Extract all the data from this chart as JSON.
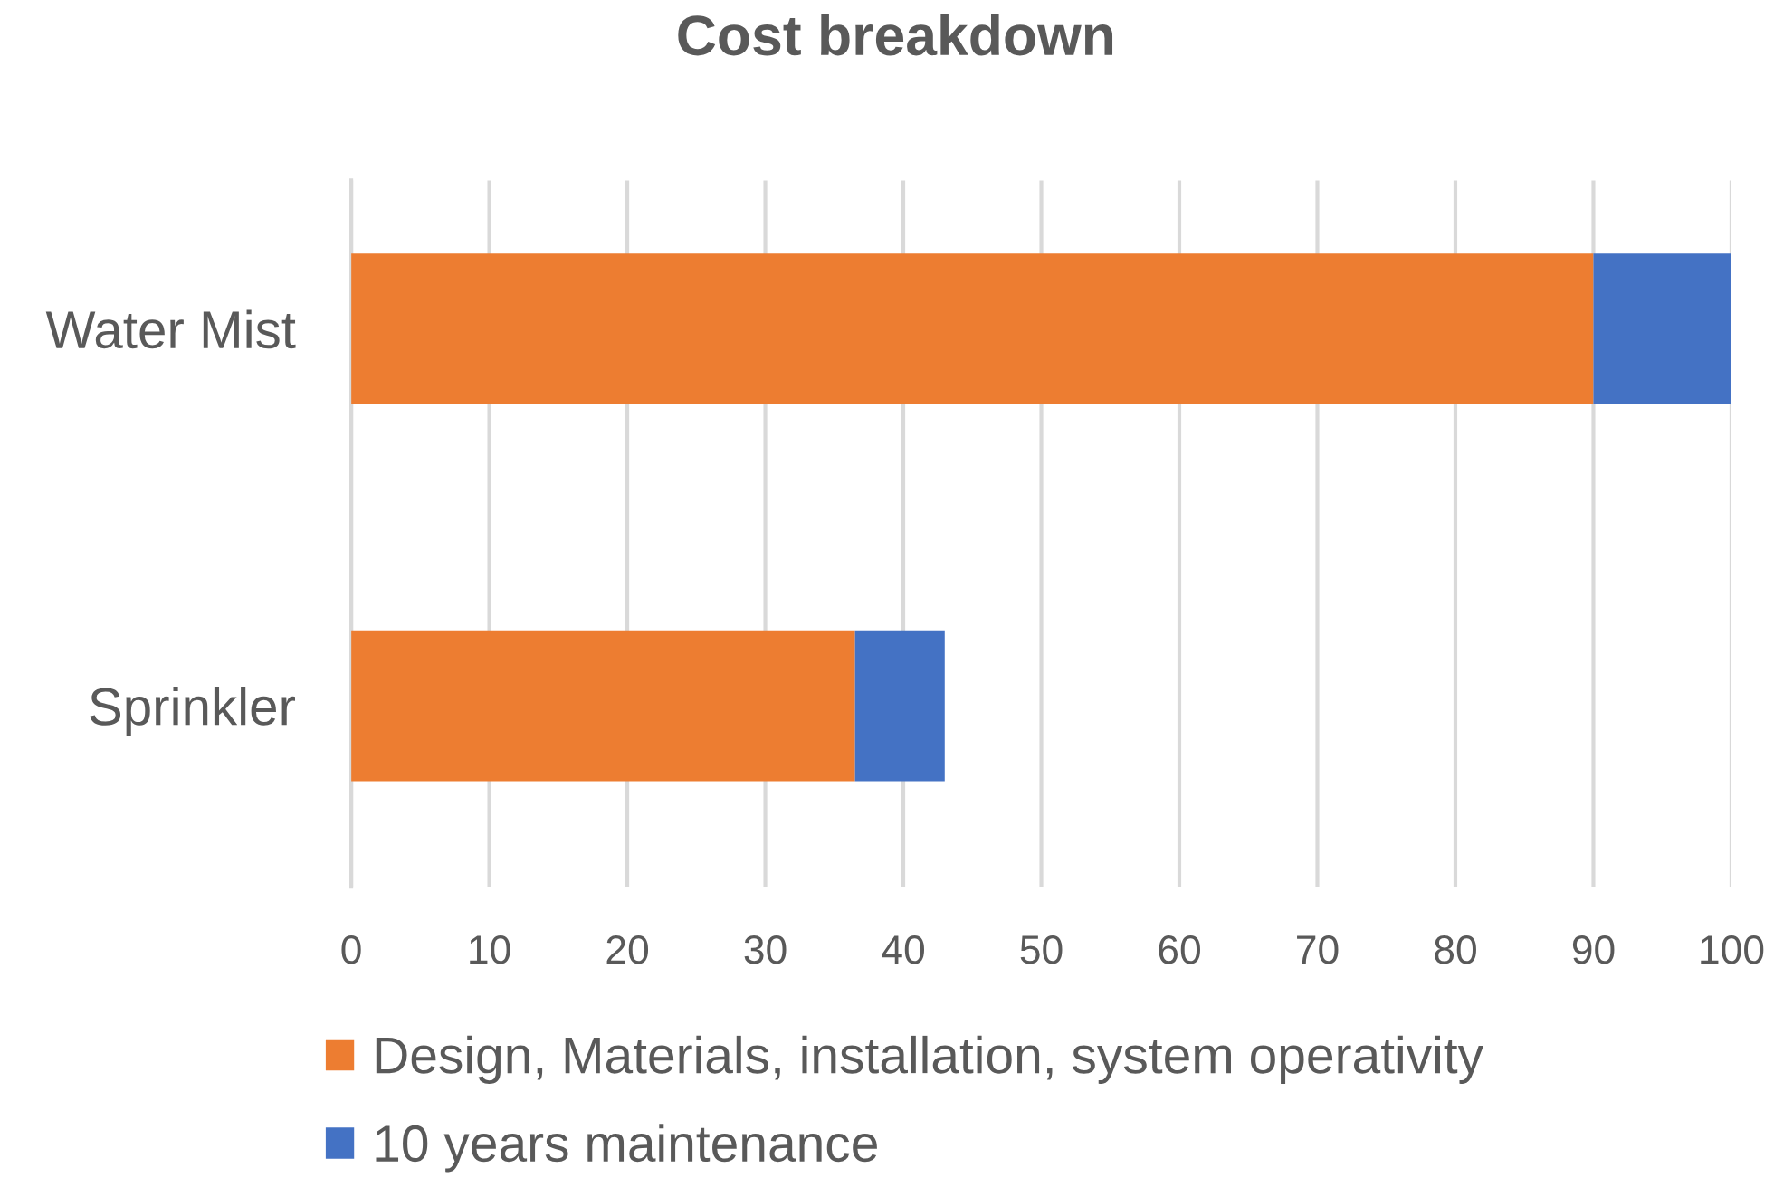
{
  "chart_data": {
    "type": "bar",
    "orientation": "horizontal",
    "stacked": true,
    "title": "Cost breakdown",
    "categories": [
      "Water Mist",
      "Sprinkler"
    ],
    "series": [
      {
        "name": "Design, Materials, installation, system operativity",
        "color": "#ed7d31",
        "values": [
          90,
          36.5
        ]
      },
      {
        "name": "10 years maintenance",
        "color": "#4472c4",
        "values": [
          10,
          6.5
        ]
      }
    ],
    "xlim": [
      0,
      100
    ],
    "xticks": [
      0,
      10,
      20,
      30,
      40,
      50,
      60,
      70,
      80,
      90,
      100
    ],
    "grid": "x",
    "legend": "bottom"
  }
}
